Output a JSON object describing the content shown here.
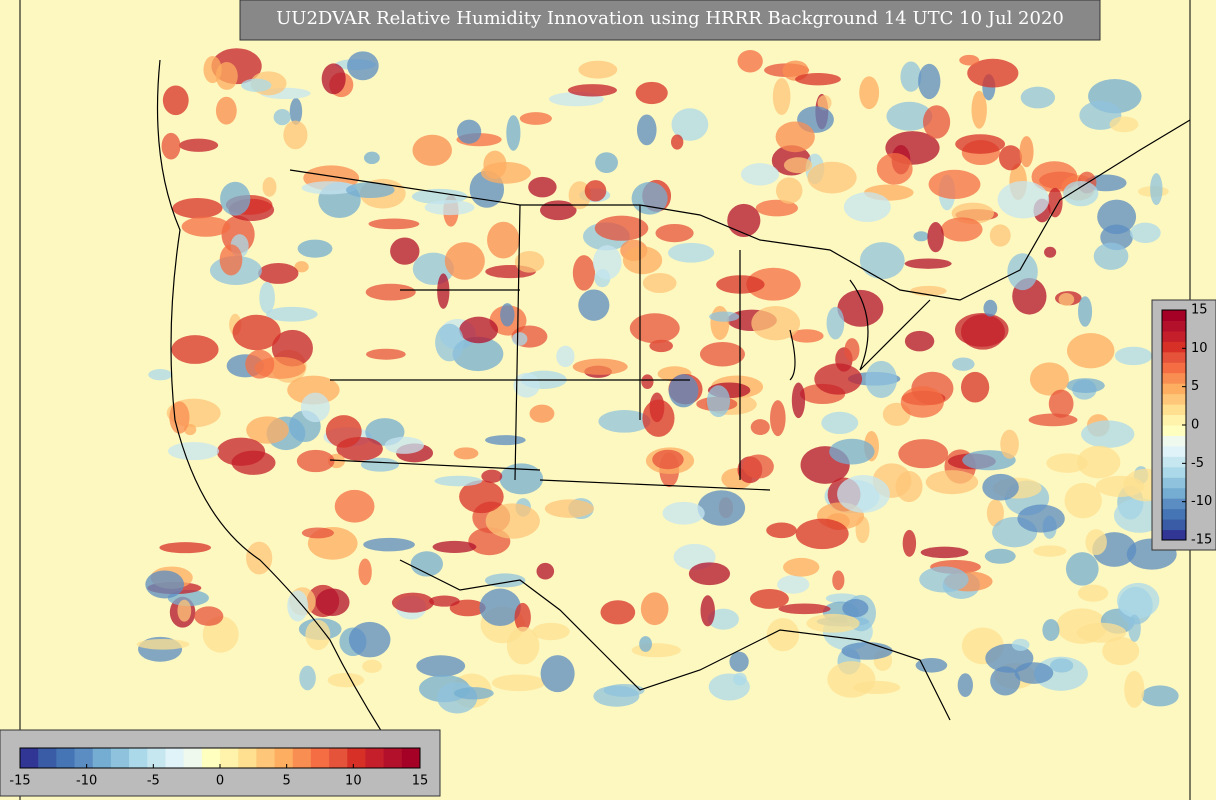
{
  "title": "UU2DVAR Relative Humidity Innovation using HRRR Background 14 UTC 10 Jul 2020",
  "colorbar": {
    "range": [
      -15,
      15
    ],
    "ticks": [
      -15,
      -10,
      -5,
      0,
      5,
      10,
      15
    ],
    "colors": [
      "#313695",
      "#3a5ba5",
      "#4575b4",
      "#5b8cc2",
      "#74add1",
      "#8fc3dd",
      "#abd9e9",
      "#c6e6f0",
      "#e0f3f8",
      "#eff9ee",
      "#ffffbf",
      "#fff3ac",
      "#fee090",
      "#fdc678",
      "#fdae61",
      "#f98e52",
      "#f46d43",
      "#e5533b",
      "#d73027",
      "#c41f2a",
      "#b2102b",
      "#a50026"
    ]
  }
}
